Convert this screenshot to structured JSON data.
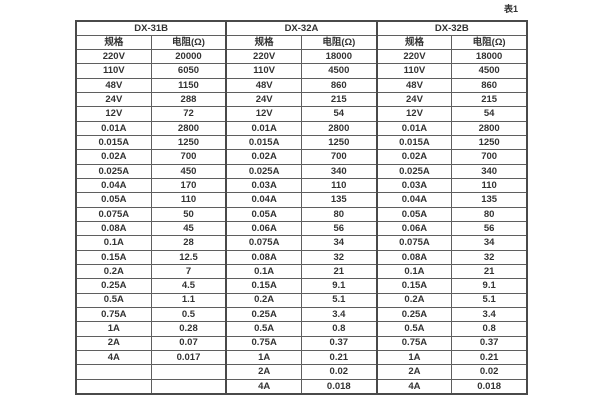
{
  "caption": "表1",
  "table": {
    "groups": [
      {
        "label": "DX-31B"
      },
      {
        "label": "DX-32A"
      },
      {
        "label": "DX-32B"
      }
    ],
    "column_headers": [
      "规格",
      "电阻(Ω)",
      "规格",
      "电阻(Ω)",
      "规格",
      "电阻(Ω)"
    ],
    "rows": [
      [
        "220V",
        "20000",
        "220V",
        "18000",
        "220V",
        "18000"
      ],
      [
        "110V",
        "6050",
        "110V",
        "4500",
        "110V",
        "4500"
      ],
      [
        "48V",
        "1150",
        "48V",
        "860",
        "48V",
        "860"
      ],
      [
        "24V",
        "288",
        "24V",
        "215",
        "24V",
        "215"
      ],
      [
        "12V",
        "72",
        "12V",
        "54",
        "12V",
        "54"
      ],
      [
        "0.01A",
        "2800",
        "0.01A",
        "2800",
        "0.01A",
        "2800"
      ],
      [
        "0.015A",
        "1250",
        "0.015A",
        "1250",
        "0.015A",
        "1250"
      ],
      [
        "0.02A",
        "700",
        "0.02A",
        "700",
        "0.02A",
        "700"
      ],
      [
        "0.025A",
        "450",
        "0.025A",
        "340",
        "0.025A",
        "340"
      ],
      [
        "0.04A",
        "170",
        "0.03A",
        "110",
        "0.03A",
        "110"
      ],
      [
        "0.05A",
        "110",
        "0.04A",
        "135",
        "0.04A",
        "135"
      ],
      [
        "0.075A",
        "50",
        "0.05A",
        "80",
        "0.05A",
        "80"
      ],
      [
        "0.08A",
        "45",
        "0.06A",
        "56",
        "0.06A",
        "56"
      ],
      [
        "0.1A",
        "28",
        "0.075A",
        "34",
        "0.075A",
        "34"
      ],
      [
        "0.15A",
        "12.5",
        "0.08A",
        "32",
        "0.08A",
        "32"
      ],
      [
        "0.2A",
        "7",
        "0.1A",
        "21",
        "0.1A",
        "21"
      ],
      [
        "0.25A",
        "4.5",
        "0.15A",
        "9.1",
        "0.15A",
        "9.1"
      ],
      [
        "0.5A",
        "1.1",
        "0.2A",
        "5.1",
        "0.2A",
        "5.1"
      ],
      [
        "0.75A",
        "0.5",
        "0.25A",
        "3.4",
        "0.25A",
        "3.4"
      ],
      [
        "1A",
        "0.28",
        "0.5A",
        "0.8",
        "0.5A",
        "0.8"
      ],
      [
        "2A",
        "0.07",
        "0.75A",
        "0.37",
        "0.75A",
        "0.37"
      ],
      [
        "4A",
        "0.017",
        "1A",
        "0.21",
        "1A",
        "0.21"
      ],
      [
        "",
        "",
        "2A",
        "0.02",
        "2A",
        "0.02"
      ],
      [
        "",
        "",
        "4A",
        "0.018",
        "4A",
        "0.018"
      ]
    ]
  },
  "chart_data": {
    "type": "table",
    "title": "表1",
    "column_groups": [
      "DX-31B",
      "DX-32A",
      "DX-32B"
    ],
    "columns": [
      "DX-31B 规格",
      "DX-31B 电阻(Ω)",
      "DX-32A 规格",
      "DX-32A 电阻(Ω)",
      "DX-32B 规格",
      "DX-32B 电阻(Ω)"
    ],
    "rows": [
      [
        "220V",
        "20000",
        "220V",
        "18000",
        "220V",
        "18000"
      ],
      [
        "110V",
        "6050",
        "110V",
        "4500",
        "110V",
        "4500"
      ],
      [
        "48V",
        "1150",
        "48V",
        "860",
        "48V",
        "860"
      ],
      [
        "24V",
        "288",
        "24V",
        "215",
        "24V",
        "215"
      ],
      [
        "12V",
        "72",
        "12V",
        "54",
        "12V",
        "54"
      ],
      [
        "0.01A",
        "2800",
        "0.01A",
        "2800",
        "0.01A",
        "2800"
      ],
      [
        "0.015A",
        "1250",
        "0.015A",
        "1250",
        "0.015A",
        "1250"
      ],
      [
        "0.02A",
        "700",
        "0.02A",
        "700",
        "0.02A",
        "700"
      ],
      [
        "0.025A",
        "450",
        "0.025A",
        "340",
        "0.025A",
        "340"
      ],
      [
        "0.04A",
        "170",
        "0.03A",
        "110",
        "0.03A",
        "110"
      ],
      [
        "0.05A",
        "110",
        "0.04A",
        "135",
        "0.04A",
        "135"
      ],
      [
        "0.075A",
        "50",
        "0.05A",
        "80",
        "0.05A",
        "80"
      ],
      [
        "0.08A",
        "45",
        "0.06A",
        "56",
        "0.06A",
        "56"
      ],
      [
        "0.1A",
        "28",
        "0.075A",
        "34",
        "0.075A",
        "34"
      ],
      [
        "0.15A",
        "12.5",
        "0.08A",
        "32",
        "0.08A",
        "32"
      ],
      [
        "0.2A",
        "7",
        "0.1A",
        "21",
        "0.1A",
        "21"
      ],
      [
        "0.25A",
        "4.5",
        "0.15A",
        "9.1",
        "0.15A",
        "9.1"
      ],
      [
        "0.5A",
        "1.1",
        "0.2A",
        "5.1",
        "0.2A",
        "5.1"
      ],
      [
        "0.75A",
        "0.5",
        "0.25A",
        "3.4",
        "0.25A",
        "3.4"
      ],
      [
        "1A",
        "0.28",
        "0.5A",
        "0.8",
        "0.5A",
        "0.8"
      ],
      [
        "2A",
        "0.07",
        "0.75A",
        "0.37",
        "0.75A",
        "0.37"
      ],
      [
        "4A",
        "0.017",
        "1A",
        "0.21",
        "1A",
        "0.21"
      ],
      [
        "",
        "",
        "2A",
        "0.02",
        "2A",
        "0.02"
      ],
      [
        "",
        "",
        "4A",
        "0.018",
        "4A",
        "0.018"
      ]
    ],
    "colors": {
      "border_outer": "#4a4a4a",
      "border_inner": "#5f5f5f",
      "text": "#333333",
      "background": "#ffffff"
    }
  }
}
